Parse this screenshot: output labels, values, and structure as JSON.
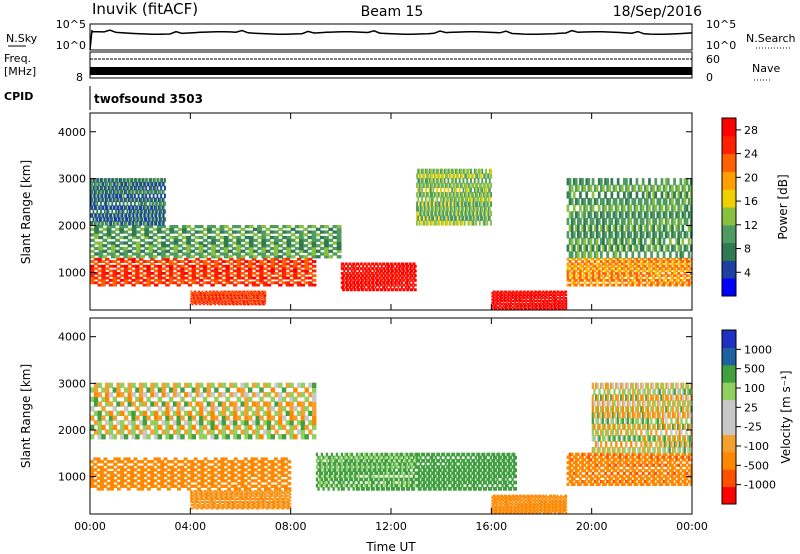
{
  "header": {
    "station": "Inuvik (fitACF)",
    "beam": "Beam 15",
    "date": "18/Sep/2016"
  },
  "strip_panels": {
    "nsky": {
      "label": "N.Sky",
      "top_tick": "10^5",
      "bottom_tick": "10^0"
    },
    "nsearch": {
      "label": "N.Search",
      "top_tick": "10^5",
      "bottom_tick": "10^0"
    },
    "freq": {
      "label_line1": "Freq.",
      "label_line2": "[MHz]",
      "tick": "8"
    },
    "nave": {
      "label": "Nave",
      "top_tick": "60",
      "bottom_tick": "0"
    },
    "cpid": {
      "label": "CPID",
      "value": "twofsound 3503"
    }
  },
  "colors": {
    "power_scale": [
      "#0000ff",
      "#1e40a0",
      "#2f7a50",
      "#4f9a60",
      "#8ac040",
      "#f0d000",
      "#ffa000",
      "#ff6000",
      "#ff2000",
      "#ff0000"
    ],
    "velocity_scale": [
      "#ff0000",
      "#ff5000",
      "#ff8800",
      "#f4a030",
      "#c8c8c8",
      "#c8c8c8",
      "#90d060",
      "#40a040",
      "#1e60a0",
      "#1e30c0"
    ]
  },
  "chart_data": [
    {
      "type": "heatmap",
      "title": "Power",
      "xlabel": "Time UT",
      "ylabel": "Slant Range [km]",
      "x_ticks": [
        "00:00",
        "04:00",
        "08:00",
        "12:00",
        "16:00",
        "20:00",
        "00:00"
      ],
      "y_ticks": [
        "1000",
        "2000",
        "3000",
        "4000"
      ],
      "xlim": [
        0,
        24
      ],
      "ylim": [
        200,
        4400
      ],
      "colorbar": {
        "label": "Power [dB]",
        "ticks": [
          "4",
          "8",
          "12",
          "16",
          "20",
          "24",
          "28"
        ],
        "range": [
          0,
          30
        ]
      },
      "features": [
        {
          "time": [
            0,
            9
          ],
          "range": [
            700,
            1300
          ],
          "value": 24
        },
        {
          "time": [
            0,
            10
          ],
          "range": [
            1300,
            2000
          ],
          "value": 10
        },
        {
          "time": [
            0,
            3
          ],
          "range": [
            2000,
            3000
          ],
          "value": 6
        },
        {
          "time": [
            4,
            7
          ],
          "range": [
            300,
            600
          ],
          "value": 24
        },
        {
          "time": [
            10,
            13
          ],
          "range": [
            600,
            1200
          ],
          "value": 28
        },
        {
          "time": [
            13,
            16
          ],
          "range": [
            2000,
            3200
          ],
          "value": 12
        },
        {
          "time": [
            16,
            19
          ],
          "range": [
            200,
            600
          ],
          "value": 29
        },
        {
          "time": [
            19,
            24
          ],
          "range": [
            700,
            1300
          ],
          "value": 20
        },
        {
          "time": [
            19,
            24
          ],
          "range": [
            1300,
            3000
          ],
          "value": 10
        }
      ]
    },
    {
      "type": "heatmap",
      "title": "Velocity",
      "xlabel": "Time UT",
      "ylabel": "Slant Range [km]",
      "x_ticks": [
        "00:00",
        "04:00",
        "08:00",
        "12:00",
        "16:00",
        "20:00",
        "00:00"
      ],
      "y_ticks": [
        "1000",
        "2000",
        "3000",
        "4000"
      ],
      "xlim": [
        0,
        24
      ],
      "ylim": [
        200,
        4400
      ],
      "colorbar": {
        "label": "Velocity [m s⁻¹]",
        "ticks": [
          "1000",
          "500",
          "100",
          "25",
          "-25",
          "-100",
          "-500",
          "-1000"
        ],
        "range": [
          -1000,
          1000
        ]
      },
      "features": [
        {
          "time": [
            0,
            8
          ],
          "range": [
            700,
            1400
          ],
          "value": -300
        },
        {
          "time": [
            0,
            9
          ],
          "range": [
            1800,
            3000
          ],
          "value": 0
        },
        {
          "time": [
            4,
            8
          ],
          "range": [
            300,
            700
          ],
          "value": -150
        },
        {
          "time": [
            9,
            13
          ],
          "range": [
            700,
            1500
          ],
          "value": 150
        },
        {
          "time": [
            13,
            17
          ],
          "range": [
            700,
            1500
          ],
          "value": 300
        },
        {
          "time": [
            16,
            19
          ],
          "range": [
            200,
            600
          ],
          "value": -300
        },
        {
          "time": [
            19,
            24
          ],
          "range": [
            800,
            1500
          ],
          "value": -400
        },
        {
          "time": [
            20,
            24
          ],
          "range": [
            1500,
            3000
          ],
          "value": 0
        }
      ]
    }
  ]
}
